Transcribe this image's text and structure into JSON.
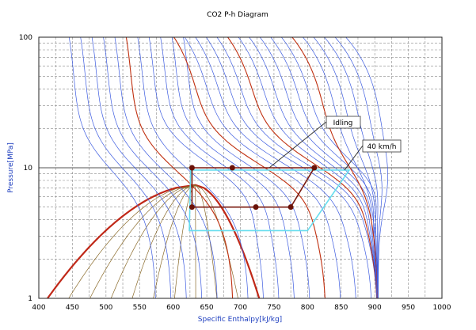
{
  "chart_data": {
    "type": "line",
    "title": "CO2 P-h Diagram",
    "xlabel": "Specific Enthalpy[kJ/kg]",
    "ylabel": "Pressure[MPa]",
    "xlim": [
      400,
      1000
    ],
    "ylim": [
      1,
      100
    ],
    "yscale": "log",
    "x_ticks": [
      "400",
      "450",
      "500",
      "550",
      "600",
      "650",
      "700",
      "750",
      "800",
      "850",
      "900",
      "950",
      "1000"
    ],
    "y_ticks": [
      "1",
      "10",
      "100"
    ],
    "grid": true,
    "colors": {
      "isotherm": "#3d5ce0",
      "accent_isotherm": "#c03010",
      "saturation_dome": "#c02818",
      "quality_lines": "#8a6a2a",
      "cycle": "#7a1a10",
      "cycle_points": "#6a1208",
      "idle_cycle": "#66ddee",
      "grid": "#888888",
      "axis_text": "#1f3fbf"
    },
    "series": [
      {
        "name": "Idling",
        "points": [
          [
            628,
            10
          ],
          [
            688,
            10
          ],
          [
            810,
            10
          ],
          [
            775,
            5.0
          ],
          [
            723,
            5.0
          ],
          [
            628,
            5.0
          ],
          [
            628,
            10
          ]
        ]
      },
      {
        "name": "40 km/h",
        "points": [
          [
            626,
            9.6
          ],
          [
            862,
            9.6
          ],
          [
            800,
            3.3
          ],
          [
            624,
            3.3
          ],
          [
            626,
            9.6
          ]
        ]
      }
    ],
    "annotations": [
      "Idling",
      "40 km/h"
    ]
  }
}
